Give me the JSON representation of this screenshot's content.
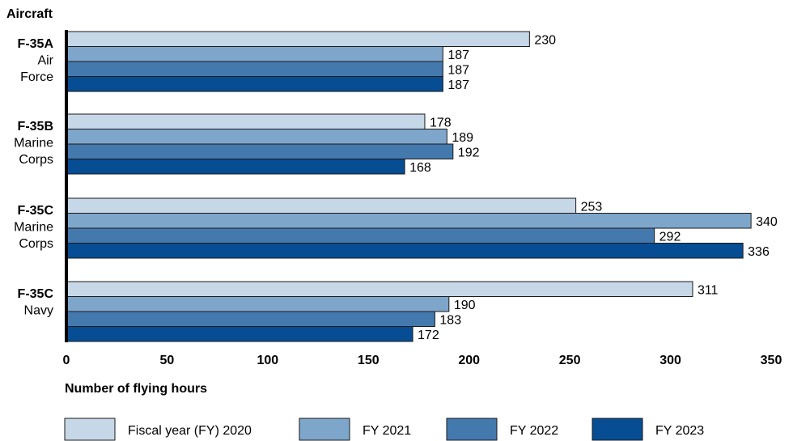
{
  "chart_data": {
    "type": "bar",
    "orientation": "horizontal",
    "y_axis_title": "Aircraft",
    "xlabel": "Number of flying hours",
    "xlim": [
      0,
      350
    ],
    "x_ticks": [
      0,
      50,
      100,
      150,
      200,
      250,
      300,
      350
    ],
    "categories": [
      {
        "bold": "F-35A",
        "lines": [
          "Air",
          "Force"
        ]
      },
      {
        "bold": "F-35B",
        "lines": [
          "Marine",
          "Corps"
        ]
      },
      {
        "bold": "F-35C",
        "lines": [
          "Marine",
          "Corps"
        ]
      },
      {
        "bold": "F-35C",
        "lines": [
          "Navy"
        ]
      }
    ],
    "series": [
      {
        "name": "Fiscal year (FY) 2020",
        "color": "#c6d7e7",
        "values": [
          230,
          178,
          253,
          311
        ]
      },
      {
        "name": "FY 2021",
        "color": "#7ea6cb",
        "values": [
          187,
          189,
          340,
          190
        ]
      },
      {
        "name": "FY 2022",
        "color": "#4479ae",
        "values": [
          187,
          192,
          292,
          183
        ]
      },
      {
        "name": "FY 2023",
        "color": "#064d93",
        "values": [
          187,
          168,
          336,
          172
        ]
      }
    ],
    "legend_position": "bottom",
    "grid": false
  }
}
